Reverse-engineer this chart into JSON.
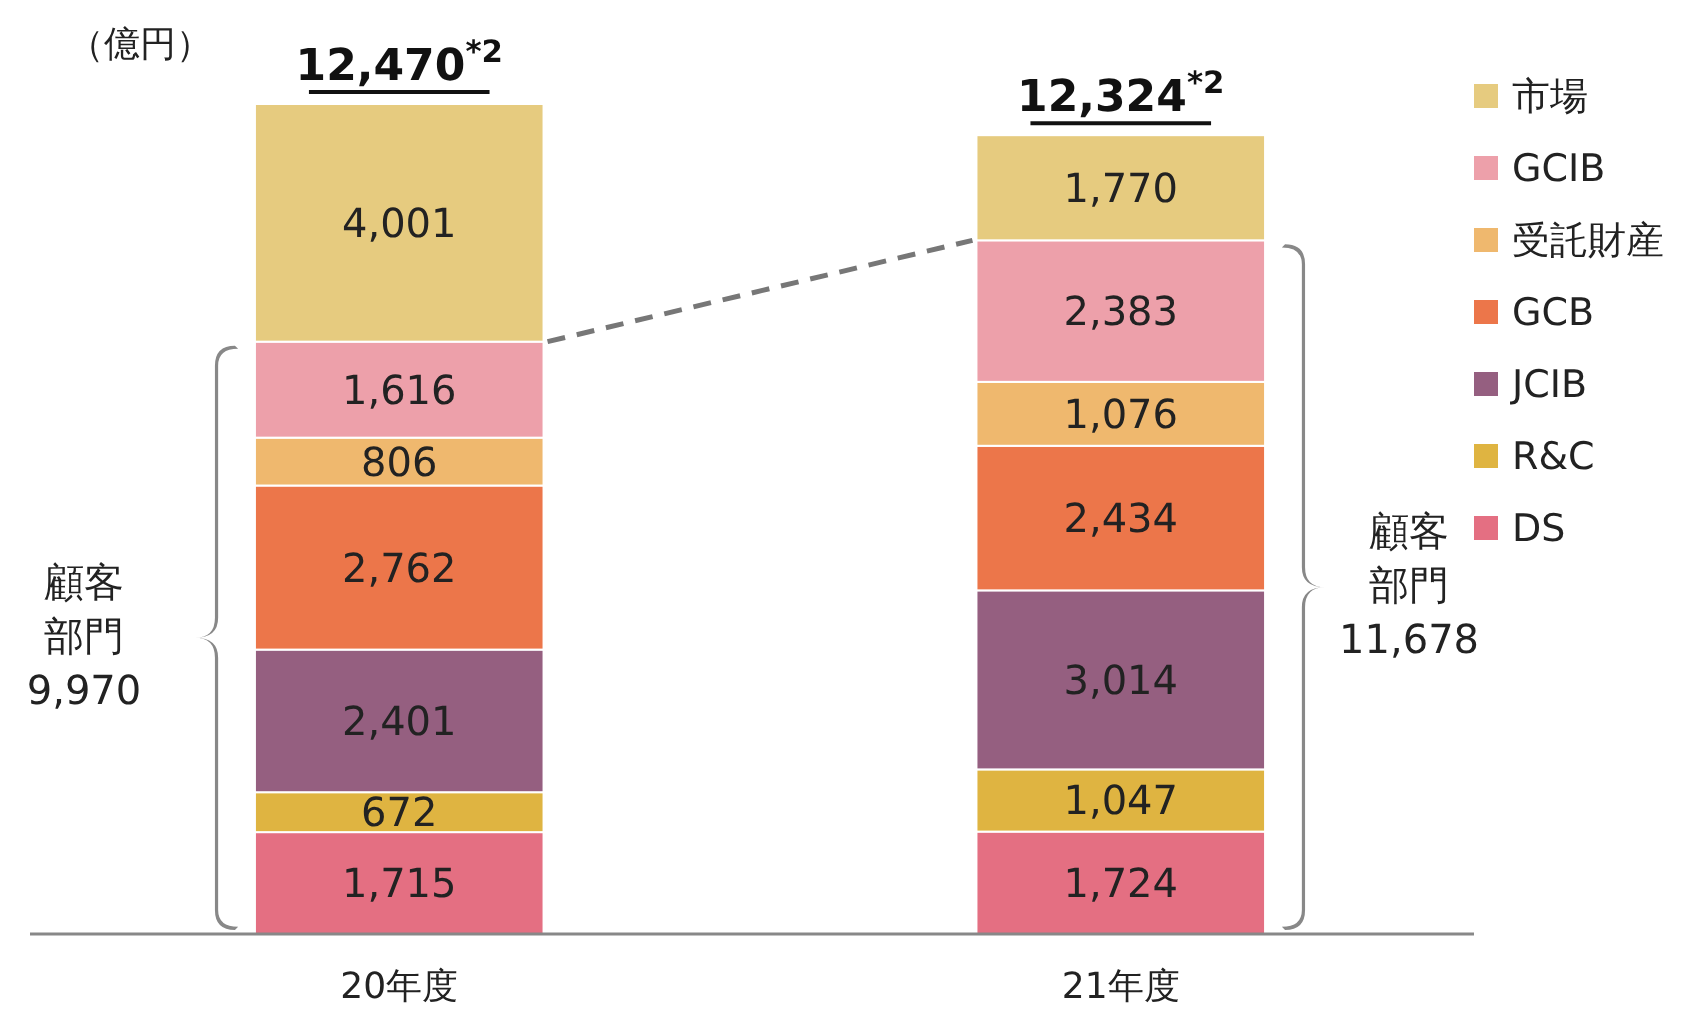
{
  "chart_data": {
    "type": "bar",
    "stacked": true,
    "categories": [
      "20年度",
      "21年度"
    ],
    "series": [
      {
        "name": "DS",
        "color": "#e46f82",
        "values": [
          1715,
          1724
        ],
        "value_labels": [
          "1,715",
          "1,724"
        ]
      },
      {
        "name": "R&C",
        "color": "#dfb441",
        "values": [
          672,
          1047
        ],
        "value_labels": [
          "672",
          "1,047"
        ]
      },
      {
        "name": "JCIB",
        "color": "#955f80",
        "values": [
          2401,
          3014
        ],
        "value_labels": [
          "2,401",
          "3,014"
        ]
      },
      {
        "name": "GCB",
        "color": "#ec764a",
        "values": [
          2762,
          2434
        ],
        "value_labels": [
          "2,762",
          "2,434"
        ]
      },
      {
        "name": "受託財産",
        "color": "#efb86e",
        "values": [
          806,
          1076
        ],
        "value_labels": [
          "806",
          "1,076"
        ]
      },
      {
        "name": "GCIB",
        "color": "#eda0aa",
        "values": [
          1616,
          2383
        ],
        "value_labels": [
          "1,616",
          "2,383"
        ]
      },
      {
        "name": "市場",
        "color": "#e6cb7f",
        "values": [
          4001,
          1770
        ],
        "value_labels": [
          "4,001",
          "1,770"
        ]
      }
    ],
    "totals": [
      "12,470$^{*2}$",
      "12,324$^{*2}$"
    ],
    "annotations": [
      "（億円）",
      "顧客部門",
      "9,970",
      "顧客部門",
      "11,678"
    ],
    "legend": "right",
    "tick_labels": "x"
  }
}
